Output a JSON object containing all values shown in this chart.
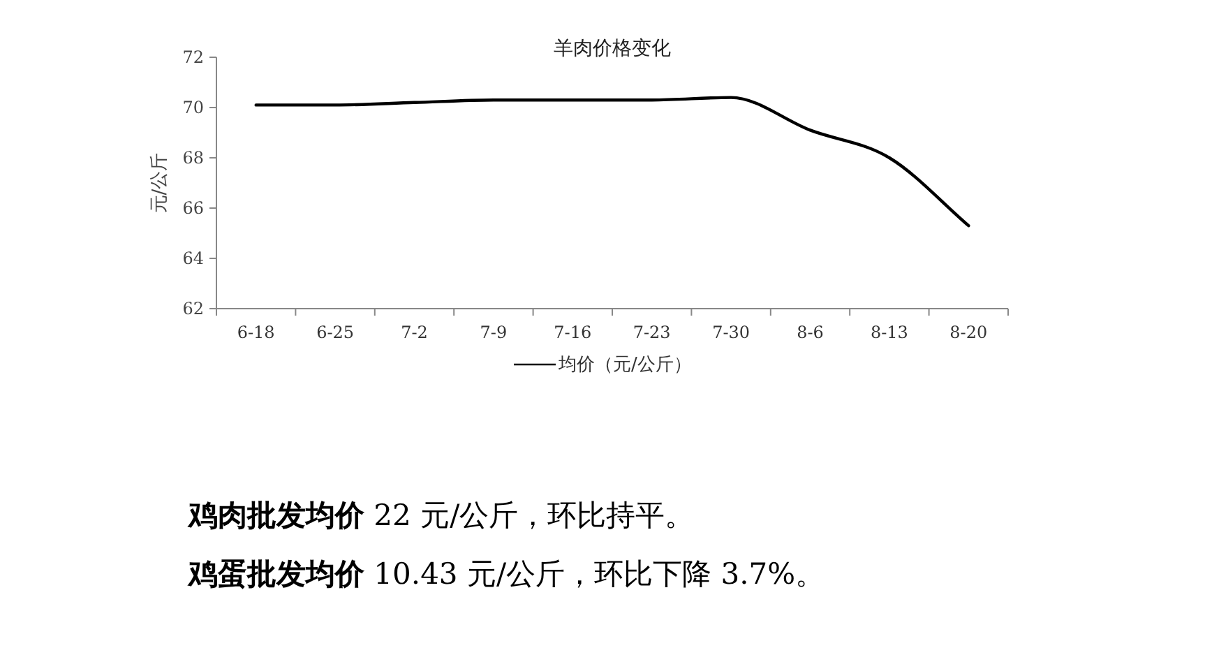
{
  "chart_data": {
    "type": "line",
    "title": "羊肉价格变化",
    "ylabel": "元/公斤",
    "categories": [
      "6-18",
      "6-25",
      "7-2",
      "7-9",
      "7-16",
      "7-23",
      "7-30",
      "8-6",
      "8-13",
      "8-20"
    ],
    "series": [
      {
        "name": "均价（元/公斤）",
        "color": "#000000",
        "values": [
          70.1,
          70.1,
          70.2,
          70.3,
          70.3,
          70.3,
          70.4,
          69.1,
          68.0,
          65.3
        ]
      }
    ],
    "ylim": [
      62,
      72
    ],
    "yticks": [
      62,
      64,
      66,
      68,
      70,
      72
    ],
    "legend": "bottom",
    "annotations": [
      "**鸡肉批发均价** 22 元/公斤，环比持平。",
      "**鸡蛋批发均价** 10.43 元/公斤，环比下降 3.7%。"
    ]
  }
}
